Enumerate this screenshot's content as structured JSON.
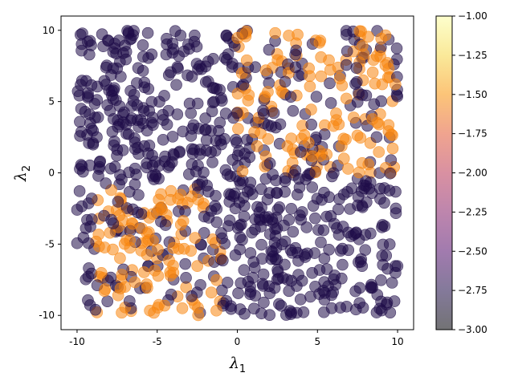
{
  "chart_data": {
    "type": "scatter",
    "title": "",
    "xlabel": "λ",
    "xlabel_subscript": "1",
    "ylabel": "λ",
    "ylabel_subscript": "2",
    "xlim": [
      -11,
      11
    ],
    "ylim": [
      -11,
      11
    ],
    "x_ticks": [
      -10,
      -5,
      0,
      5,
      10
    ],
    "x_tick_labels": [
      "-10",
      "-5",
      "0",
      "5",
      "10"
    ],
    "y_ticks": [
      -10,
      -5,
      0,
      5,
      10
    ],
    "y_tick_labels": [
      "-10",
      "-5",
      "0",
      "5",
      "10"
    ],
    "grid": false,
    "colormap": "inferno",
    "marker_alpha": 0.55,
    "colorbar": {
      "range": [
        -3.0,
        -1.0
      ],
      "ticks": [
        -3.0,
        -2.75,
        -2.5,
        -2.25,
        -2.0,
        -1.75,
        -1.5,
        -1.25,
        -1.0
      ],
      "tick_labels": [
        "−3.00",
        "−2.75",
        "−2.50",
        "−2.25",
        "−2.00",
        "−1.75",
        "−1.50",
        "−1.25",
        "−1.00"
      ]
    },
    "point_count": 1000,
    "value_levels": {
      "low": -3.0,
      "high": -1.5
    },
    "high_value_regions": [
      {
        "x_range": [
          -9,
          -1
        ],
        "y_range": [
          -10,
          -1
        ]
      },
      {
        "x_range": [
          0,
          10
        ],
        "y_range": [
          0,
          10
        ]
      }
    ],
    "colors": {
      "low_points": "#1f0c48",
      "high_points": "#f8850f",
      "axes": "#000000",
      "background": "#ffffff"
    }
  }
}
